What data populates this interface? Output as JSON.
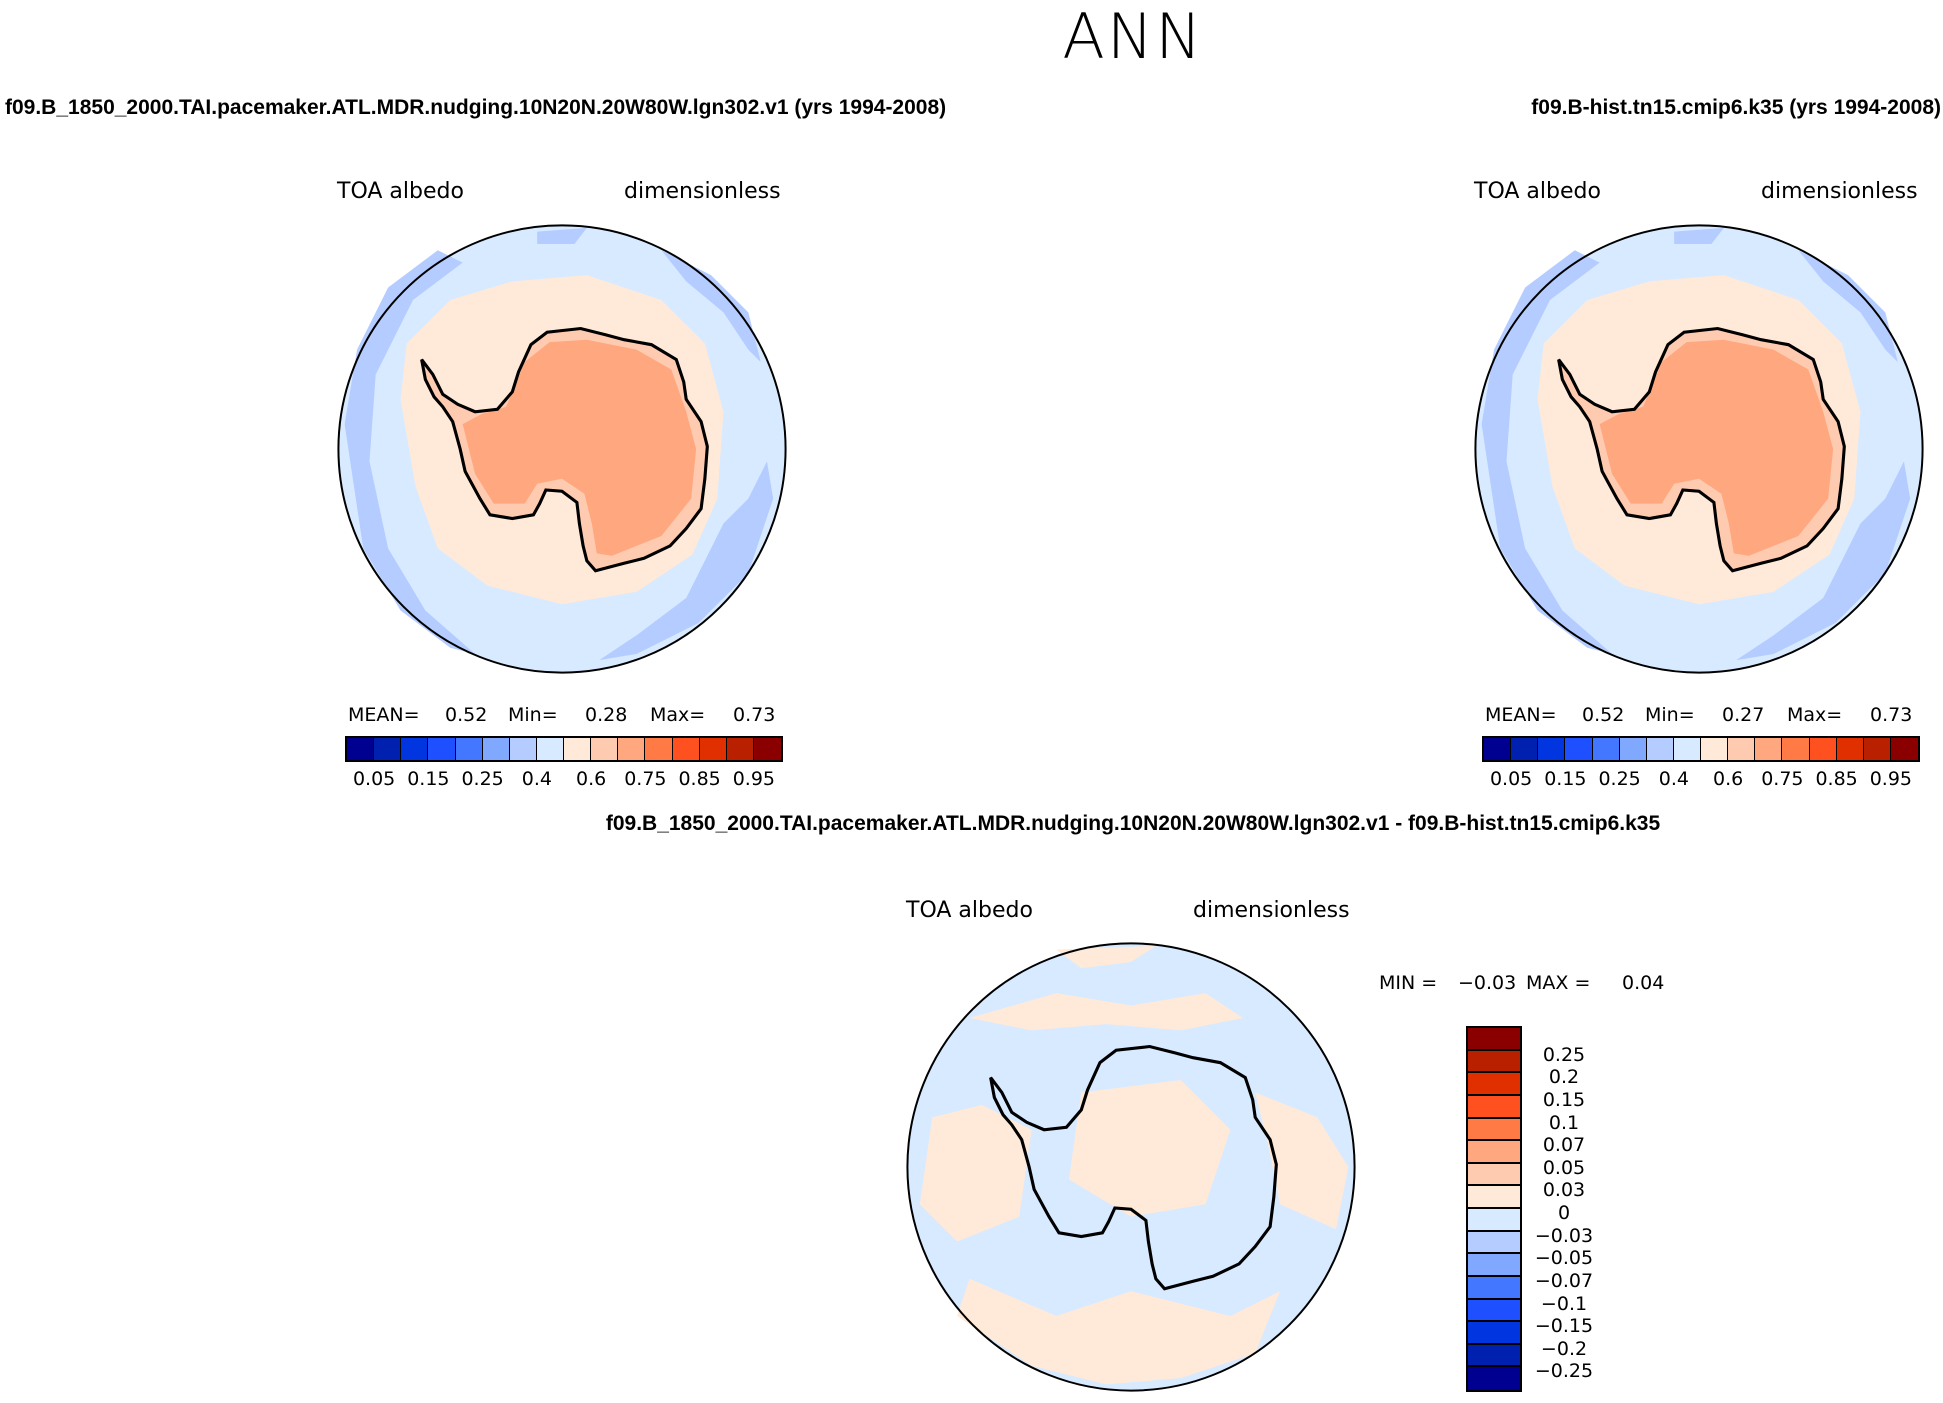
{
  "title": "ANN",
  "colors": {
    "abs_scale": [
      "#000090",
      "#0020b0",
      "#0035e0",
      "#1e50ff",
      "#4477ff",
      "#80a8ff",
      "#b4ccff",
      "#d7eaff",
      "#ffead9",
      "#ffcbb0",
      "#ffa880",
      "#ff7a45",
      "#ff5020",
      "#e03000",
      "#b82000",
      "#8a0000"
    ],
    "coast": "#000000"
  },
  "panels": [
    {
      "case_title": "f09.B_1850_2000.TAI.pacemaker.ATL.MDR.nudging.10N20N.20W80W.lgn302.v1 (yrs 1994-2008)",
      "variable": "TOA albedo",
      "units": "dimensionless",
      "mean_label": "MEAN=",
      "mean": "0.52",
      "min_label": "Min=",
      "min": "0.28",
      "max_label": "Max=",
      "max": "0.73"
    },
    {
      "case_title": "f09.B-hist.tn15.cmip6.k35 (yrs 1994-2008)",
      "variable": "TOA albedo",
      "units": "dimensionless",
      "mean_label": "MEAN=",
      "mean": "0.52",
      "min_label": "Min=",
      "min": "0.27",
      "max_label": "Max=",
      "max": "0.73"
    }
  ],
  "diff": {
    "title": "f09.B_1850_2000.TAI.pacemaker.ATL.MDR.nudging.10N20N.20W80W.lgn302.v1 - f09.B-hist.tn15.cmip6.k35",
    "variable": "TOA albedo",
    "units": "dimensionless",
    "min_label": "MIN =",
    "min": "−0.03",
    "max_label": "MAX =",
    "max": "0.04"
  },
  "chart_data": [
    {
      "type": "heatmap",
      "projection": "south-polar-stereographic",
      "title": "f09.B_1850_2000.TAI.pacemaker.ATL.MDR.nudging.10N20N.20W80W.lgn302.v1 (yrs 1994-2008)",
      "variable": "TOA albedo",
      "units": "dimensionless",
      "mean": 0.52,
      "min": 0.28,
      "max": 0.73,
      "colorbar_ticks": [
        "0.05",
        "0.15",
        "0.25",
        "0.4",
        "0.6",
        "0.75",
        "0.85",
        "0.95"
      ]
    },
    {
      "type": "heatmap",
      "projection": "south-polar-stereographic",
      "title": "f09.B-hist.tn15.cmip6.k35 (yrs 1994-2008)",
      "variable": "TOA albedo",
      "units": "dimensionless",
      "mean": 0.52,
      "min": 0.27,
      "max": 0.73,
      "colorbar_ticks": [
        "0.05",
        "0.15",
        "0.25",
        "0.4",
        "0.6",
        "0.75",
        "0.85",
        "0.95"
      ]
    },
    {
      "type": "heatmap",
      "projection": "south-polar-stereographic",
      "title": "difference",
      "variable": "TOA albedo",
      "units": "dimensionless",
      "min": -0.03,
      "max": 0.04,
      "colorbar_ticks": [
        "0.25",
        "0.2",
        "0.15",
        "0.1",
        "0.07",
        "0.05",
        "0.03",
        "0",
        "−0.03",
        "−0.05",
        "−0.07",
        "−0.1",
        "−0.15",
        "−0.2",
        "−0.25"
      ]
    }
  ]
}
